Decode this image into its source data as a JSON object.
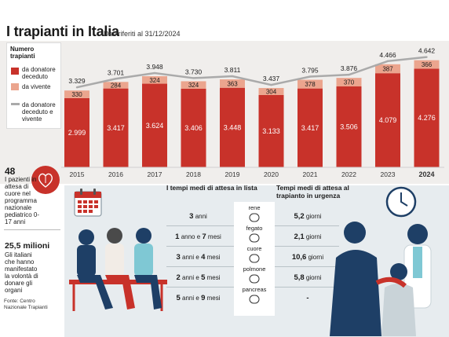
{
  "header": {
    "title": "I trapianti in Italia",
    "subtitle": "Dati riferiti al 31/12/2024"
  },
  "legend": {
    "title": "Numero trapianti",
    "items": [
      {
        "label": "da donatore deceduto",
        "color": "#c8322a"
      },
      {
        "label": "da vivente",
        "color": "#eba58e"
      },
      {
        "label": "da donatore deceduto e vivente",
        "color": "#aaaaaa"
      }
    ]
  },
  "chart_data": {
    "type": "bar",
    "stacked": true,
    "categories": [
      "2015",
      "2016",
      "2017",
      "2018",
      "2019",
      "2020",
      "2021",
      "2022",
      "2023",
      "2024"
    ],
    "series": [
      {
        "name": "da donatore deceduto",
        "color": "#c8322a",
        "values": [
          2999,
          3417,
          3624,
          3406,
          3448,
          3133,
          3417,
          3506,
          4079,
          4276
        ]
      },
      {
        "name": "da vivente",
        "color": "#eba58e",
        "values": [
          330,
          284,
          324,
          324,
          363,
          304,
          378,
          370,
          387,
          366
        ]
      },
      {
        "name": "da donatore deceduto e vivente",
        "type": "line",
        "color": "#aaaaaa",
        "values": [
          3329,
          3701,
          3948,
          3730,
          3811,
          3437,
          3795,
          3876,
          4466,
          4642
        ]
      }
    ],
    "labels_deceased": [
      "2.999",
      "3.417",
      "3.624",
      "3.406",
      "3.448",
      "3.133",
      "3.417",
      "3.506",
      "4.079",
      "4.276"
    ],
    "labels_living": [
      "330",
      "284",
      "324",
      "324",
      "363",
      "304",
      "378",
      "370",
      "387",
      "366"
    ],
    "labels_total": [
      "3.329",
      "3.701",
      "3.948",
      "3.730",
      "3.811",
      "3.437",
      "3.795",
      "3.876",
      "4.466",
      "4.642"
    ],
    "highlight_category": "2024",
    "ylim": [
      0,
      4800
    ]
  },
  "stats": [
    {
      "number": "48",
      "text": "I pazienti in attesa di cuore nel programma nazionale pediatrico 0-17 anni"
    },
    {
      "number": "25,5 milioni",
      "text": "Gli italiani che hanno manifestato la volontà di donare gli organi"
    }
  ],
  "source": "Fonte: Centro Nazionale Trapianti",
  "waiting": {
    "list_header": "I tempi medi di attesa in lista",
    "urgent_header": "Tempi medi di attesa al trapianto in urgenza",
    "rows": [
      {
        "organ": "rene",
        "list_a": "3",
        "list_a_unit": "anni",
        "list_b": "",
        "list_b_unit": "",
        "urgent": "5,2",
        "urgent_unit": "giorni"
      },
      {
        "organ": "fegato",
        "list_a": "1",
        "list_a_unit": "anno e",
        "list_b": "7",
        "list_b_unit": "mesi",
        "urgent": "2,1",
        "urgent_unit": "giorni"
      },
      {
        "organ": "cuore",
        "list_a": "3",
        "list_a_unit": "anni e",
        "list_b": "4",
        "list_b_unit": "mesi",
        "urgent": "10,6",
        "urgent_unit": "giorni"
      },
      {
        "organ": "polmone",
        "list_a": "2",
        "list_a_unit": "anni e",
        "list_b": "5",
        "list_b_unit": "mesi",
        "urgent": "5,8",
        "urgent_unit": "giorni"
      },
      {
        "organ": "pancreas",
        "list_a": "5",
        "list_a_unit": "anni e",
        "list_b": "9",
        "list_b_unit": "mesi",
        "urgent": "-",
        "urgent_unit": ""
      }
    ]
  }
}
